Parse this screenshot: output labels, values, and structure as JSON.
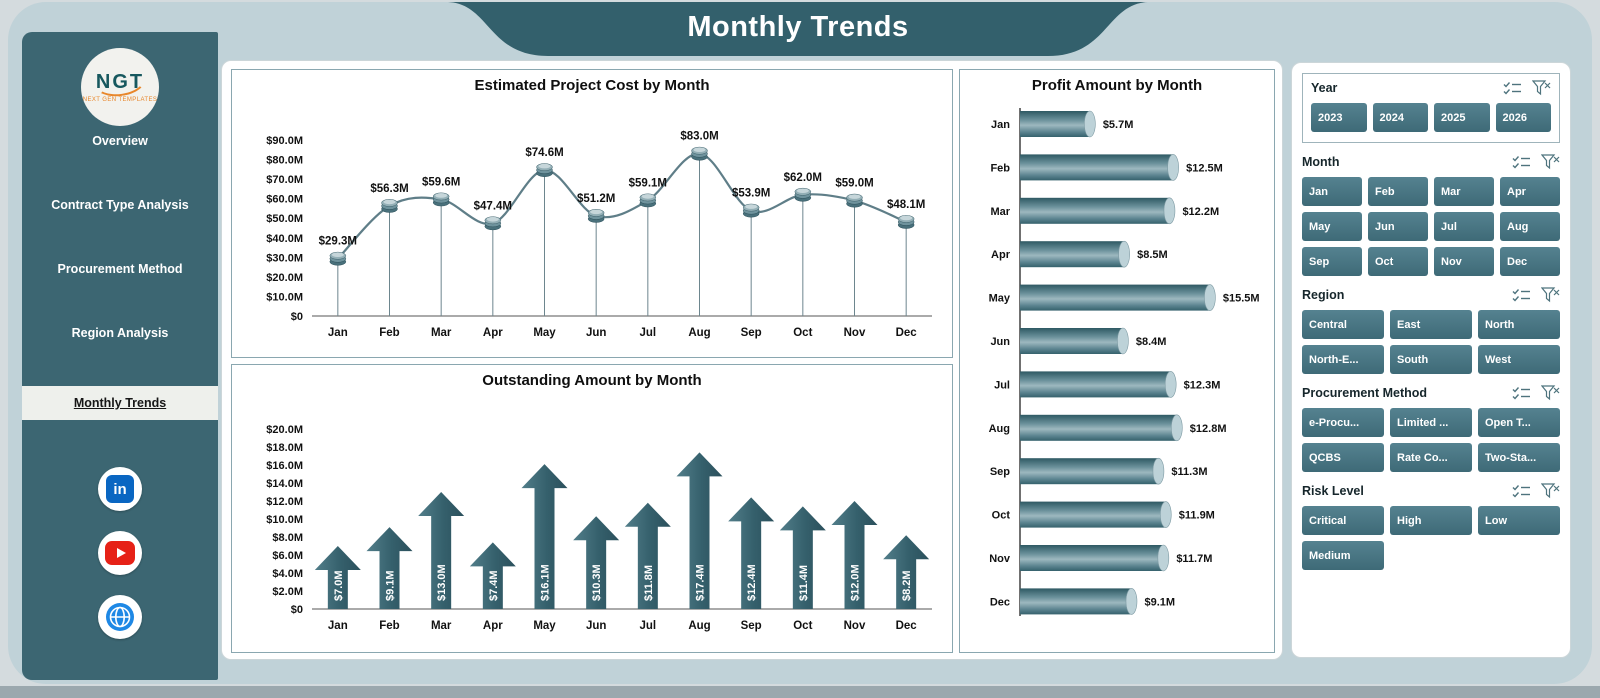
{
  "header": {
    "title": "Monthly Trends"
  },
  "sidebar": {
    "logo": {
      "text": "NGT",
      "subtext": "NEXT GEN TEMPLATES"
    },
    "items": [
      {
        "label": "Overview",
        "active": false
      },
      {
        "label": "Contract Type Analysis",
        "active": false
      },
      {
        "label": "Procurement Method",
        "active": false
      },
      {
        "label": "Region Analysis",
        "active": false
      },
      {
        "label": "Monthly Trends",
        "active": true
      }
    ],
    "social": [
      {
        "name": "linkedin-icon",
        "color": "#0a66c2"
      },
      {
        "name": "youtube-icon",
        "color": "#e62117"
      },
      {
        "name": "globe-icon",
        "color": "#1e88e5"
      }
    ]
  },
  "chart_data": [
    {
      "type": "line",
      "title": "Estimated Project Cost by Month",
      "categories": [
        "Jan",
        "Feb",
        "Mar",
        "Apr",
        "May",
        "Jun",
        "Jul",
        "Aug",
        "Sep",
        "Oct",
        "Nov",
        "Dec"
      ],
      "values": [
        29.3,
        56.3,
        59.6,
        47.4,
        74.6,
        51.2,
        59.1,
        83.0,
        53.9,
        62.0,
        59.0,
        48.1
      ],
      "labels": [
        "$29.3M",
        "$56.3M",
        "$59.6M",
        "$47.4M",
        "$74.6M",
        "$51.2M",
        "$59.1M",
        "$83.0M",
        "$53.9M",
        "$62.0M",
        "$59.0M",
        "$48.1M"
      ],
      "ylim": [
        0,
        90
      ],
      "ytick_labels": [
        "$0",
        "$10.0M",
        "$20.0M",
        "$30.0M",
        "$40.0M",
        "$50.0M",
        "$60.0M",
        "$70.0M",
        "$80.0M",
        "$90.0M"
      ],
      "grid": false,
      "legend": "none"
    },
    {
      "type": "bar",
      "bar_style": "up-arrow",
      "title": "Outstanding Amount by Month",
      "categories": [
        "Jan",
        "Feb",
        "Mar",
        "Apr",
        "May",
        "Jun",
        "Jul",
        "Aug",
        "Sep",
        "Oct",
        "Nov",
        "Dec"
      ],
      "values": [
        7.0,
        9.1,
        13.0,
        7.4,
        16.1,
        10.3,
        11.8,
        17.4,
        12.4,
        11.4,
        12.0,
        8.2
      ],
      "labels": [
        "$7.0M",
        "$9.1M",
        "$13.0M",
        "$7.4M",
        "$16.1M",
        "$10.3M",
        "$11.8M",
        "$17.4M",
        "$12.4M",
        "$11.4M",
        "$12.0M",
        "$8.2M"
      ],
      "ylim": [
        0,
        20
      ],
      "ytick_labels": [
        "$0",
        "$2.0M",
        "$4.0M",
        "$6.0M",
        "$8.0M",
        "$10.0M",
        "$12.0M",
        "$14.0M",
        "$16.0M",
        "$18.0M",
        "$20.0M"
      ],
      "grid": false,
      "legend": "none"
    },
    {
      "type": "bar-horizontal",
      "bar_style": "cylinder",
      "title": "Profit Amount by Month",
      "categories": [
        "Jan",
        "Feb",
        "Mar",
        "Apr",
        "May",
        "Jun",
        "Jul",
        "Aug",
        "Sep",
        "Oct",
        "Nov",
        "Dec"
      ],
      "values": [
        5.7,
        12.5,
        12.2,
        8.5,
        15.5,
        8.4,
        12.3,
        12.8,
        11.3,
        11.9,
        11.7,
        9.1
      ],
      "labels": [
        "$5.7M",
        "$12.5M",
        "$12.2M",
        "$8.5M",
        "$15.5M",
        "$8.4M",
        "$12.3M",
        "$12.8M",
        "$11.3M",
        "$11.9M",
        "$11.7M",
        "$9.1M"
      ],
      "xlim": [
        0,
        16
      ],
      "grid": false,
      "legend": "none"
    }
  ],
  "slicers": [
    {
      "title": "Year",
      "cols": 4,
      "boxed": true,
      "options": [
        "2023",
        "2024",
        "2025",
        "2026"
      ]
    },
    {
      "title": "Month",
      "cols": 4,
      "boxed": false,
      "options": [
        "Jan",
        "Feb",
        "Mar",
        "Apr",
        "May",
        "Jun",
        "Jul",
        "Aug",
        "Sep",
        "Oct",
        "Nov",
        "Dec"
      ]
    },
    {
      "title": "Region",
      "cols": 3,
      "boxed": false,
      "options": [
        "Central",
        "East",
        "North",
        "North-E...",
        "South",
        "West"
      ]
    },
    {
      "title": "Procurement Method",
      "cols": 3,
      "boxed": false,
      "options": [
        "e-Procu...",
        "Limited ...",
        "Open T...",
        "QCBS",
        "Rate Co...",
        "Two-Sta..."
      ]
    },
    {
      "title": "Risk Level",
      "cols": 3,
      "boxed": false,
      "options": [
        "Critical",
        "High",
        "Low",
        "Medium"
      ]
    }
  ],
  "slicer_header_icons": [
    "multiselect-icon",
    "clear-filter-icon"
  ],
  "colors": {
    "teal_sidebar": "#3c6672",
    "teal_banner": "#33606c",
    "teal_button": "#477380",
    "teal_dark": "#2b5561",
    "dashboard_bg": "#c0d2d8",
    "active_nav_bg": "#eef0ec",
    "linkedin": "#0a66c2",
    "youtube": "#e62117",
    "globe": "#1e88e5"
  }
}
